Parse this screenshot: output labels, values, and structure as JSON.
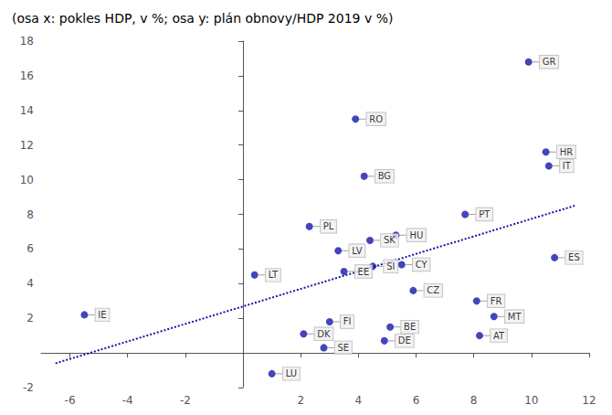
{
  "chart_data": {
    "type": "scatter",
    "title": "(osa x: pokles HDP, v %; osa y: plán obnovy/HDP 2019 v %)",
    "series": [
      {
        "type": "scatter",
        "color": "#1515aa",
        "marker": "circle",
        "annotations": [
          "IE",
          "LU",
          "LT",
          "PL",
          "DK",
          "SE",
          "FI",
          "LV",
          "EE",
          "RO",
          "BG",
          "SK",
          "SI",
          "DE",
          "BE",
          "HU",
          "CY",
          "CZ",
          "PT",
          "FR",
          "AT",
          "MT",
          "ES",
          "GR",
          "HR",
          "IT"
        ],
        "x": [
          -5.5,
          1.0,
          0.4,
          2.3,
          2.1,
          2.8,
          3.0,
          3.3,
          3.5,
          3.9,
          4.2,
          4.4,
          4.5,
          4.9,
          5.1,
          5.3,
          5.5,
          5.9,
          7.7,
          8.1,
          8.2,
          8.7,
          10.8,
          9.9,
          10.5,
          10.6
        ],
        "values": [
          2.2,
          -1.2,
          4.5,
          7.3,
          1.1,
          0.3,
          1.8,
          5.9,
          4.7,
          13.5,
          10.2,
          6.5,
          5.0,
          0.7,
          1.5,
          6.8,
          5.1,
          3.6,
          8.0,
          3.0,
          1.0,
          2.1,
          5.5,
          16.8,
          11.6,
          10.8
        ]
      },
      {
        "type": "line",
        "color": "#1515aa",
        "line_style": "dotted",
        "x": [
          -6.5,
          11.5
        ],
        "values": [
          -0.6,
          8.5
        ]
      }
    ],
    "xlim": [
      -7,
      12
    ],
    "ylim": [
      -2,
      18
    ],
    "xticks": [
      -6,
      -4,
      -2,
      {
        "value": 0,
        "label": ""
      },
      2,
      4,
      6,
      8,
      10,
      12
    ],
    "yticks": [
      -2,
      {
        "value": 0,
        "label": ""
      },
      2,
      4,
      6,
      8,
      10,
      12,
      14,
      16,
      18
    ],
    "grid": false
  }
}
